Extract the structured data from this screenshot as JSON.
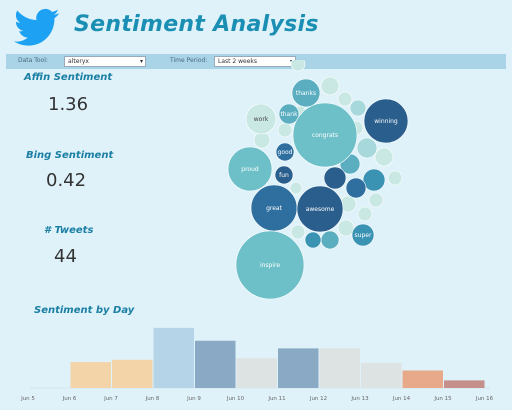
{
  "header": {
    "title": "Sentiment Analysis",
    "brand_color": "#1da1f2"
  },
  "filters": {
    "data_tool_label": "Data Tool:",
    "data_tool_value": "alteryx",
    "time_period_label": "Time Period:",
    "time_period_value": "Last 2 weeks"
  },
  "kpis": {
    "affin_title": "Affin Sentiment",
    "affin_value": "1.36",
    "bing_title": "Bing Sentiment",
    "bing_value": "0.42",
    "tweets_title": "# Tweets",
    "tweets_value": "44"
  },
  "word_bubbles": {
    "labeled_words": [
      "thanks",
      "thank",
      "work",
      "congrats",
      "winning",
      "good",
      "proud",
      "fun",
      "great",
      "awesome",
      "super",
      "inspire"
    ]
  },
  "chart_data": {
    "type": "bar",
    "title": "Sentiment by Day",
    "categories": [
      "Jun 5",
      "Jun 6",
      "Jun 7",
      "Jun 8",
      "Jun 9",
      "Jun 10",
      "Jun 11",
      "Jun 12",
      "Jun 13",
      "Jun 14",
      "Jun 15",
      "Jun 16"
    ],
    "values": [
      0,
      1.7,
      1.85,
      3.95,
      3.1,
      1.95,
      2.6,
      2.6,
      1.65,
      1.15,
      0.5,
      0
    ],
    "colors": [
      "#f3d3a8",
      "#f3d3a8",
      "#f3d3a8",
      "#b5d4e8",
      "#89a9c4",
      "#dde2e2",
      "#89a9c4",
      "#dde2e2",
      "#dde2e2",
      "#e8a98a",
      "#c58f8b",
      "#c58f8b"
    ],
    "ylim": [
      0,
      4.2
    ],
    "grid": false
  }
}
